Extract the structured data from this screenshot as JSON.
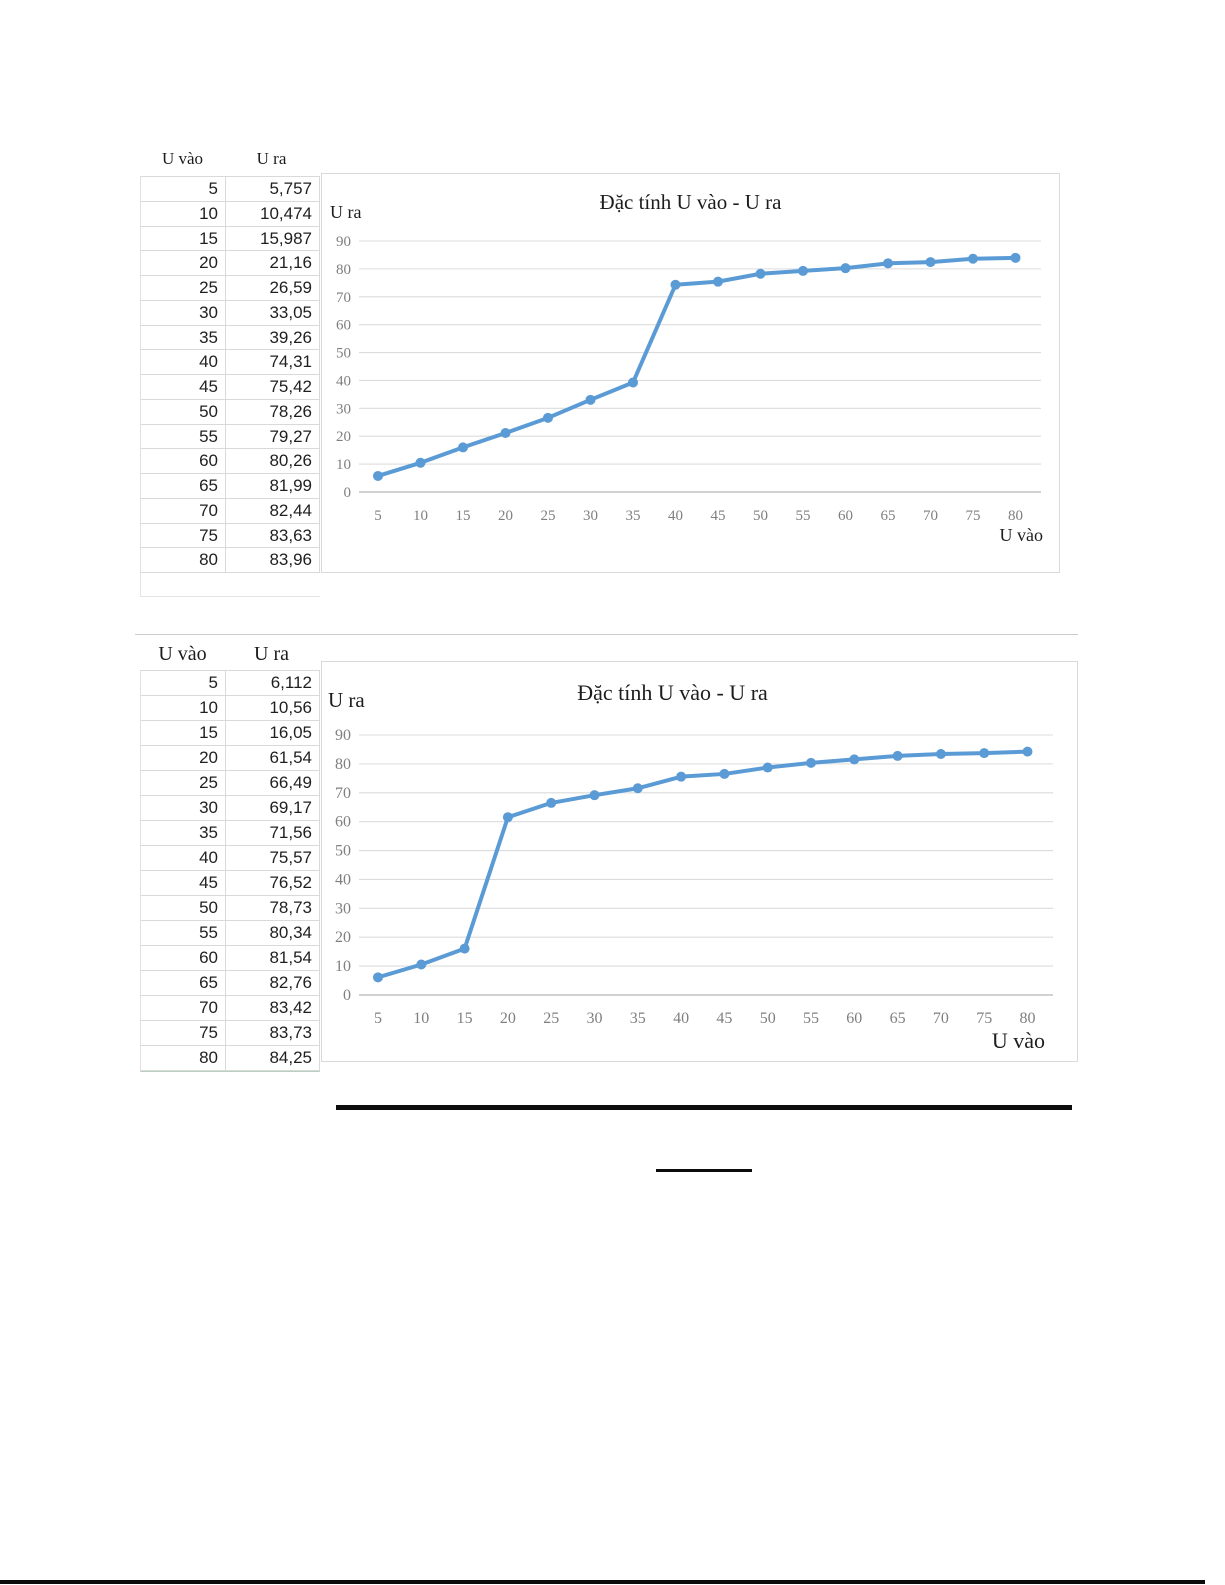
{
  "tables": [
    {
      "headers": {
        "col1": "U vào",
        "col2": "U ra"
      },
      "rows": [
        {
          "in": "5",
          "out": "5,757"
        },
        {
          "in": "10",
          "out": "10,474"
        },
        {
          "in": "15",
          "out": "15,987"
        },
        {
          "in": "20",
          "out": "21,16"
        },
        {
          "in": "25",
          "out": "26,59"
        },
        {
          "in": "30",
          "out": "33,05"
        },
        {
          "in": "35",
          "out": "39,26"
        },
        {
          "in": "40",
          "out": "74,31"
        },
        {
          "in": "45",
          "out": "75,42"
        },
        {
          "in": "50",
          "out": "78,26"
        },
        {
          "in": "55",
          "out": "79,27"
        },
        {
          "in": "60",
          "out": "80,26"
        },
        {
          "in": "65",
          "out": "81,99"
        },
        {
          "in": "70",
          "out": "82,44"
        },
        {
          "in": "75",
          "out": "83,63"
        },
        {
          "in": "80",
          "out": "83,96"
        }
      ]
    },
    {
      "headers": {
        "col1": "U vào",
        "col2": "U ra"
      },
      "rows": [
        {
          "in": "5",
          "out": "6,112"
        },
        {
          "in": "10",
          "out": "10,56"
        },
        {
          "in": "15",
          "out": "16,05"
        },
        {
          "in": "20",
          "out": "61,54"
        },
        {
          "in": "25",
          "out": "66,49"
        },
        {
          "in": "30",
          "out": "69,17"
        },
        {
          "in": "35",
          "out": "71,56"
        },
        {
          "in": "40",
          "out": "75,57"
        },
        {
          "in": "45",
          "out": "76,52"
        },
        {
          "in": "50",
          "out": "78,73"
        },
        {
          "in": "55",
          "out": "80,34"
        },
        {
          "in": "60",
          "out": "81,54"
        },
        {
          "in": "65",
          "out": "82,76"
        },
        {
          "in": "70",
          "out": "83,42"
        },
        {
          "in": "75",
          "out": "83,73"
        },
        {
          "in": "80",
          "out": "84,25"
        }
      ]
    }
  ],
  "chart_data": [
    {
      "type": "line",
      "title": "Đặc tính U vào - U ra",
      "xlabel": "U vào",
      "ylabel": "U ra",
      "x": [
        5,
        10,
        15,
        20,
        25,
        30,
        35,
        40,
        45,
        50,
        55,
        60,
        65,
        70,
        75,
        80
      ],
      "series": [
        {
          "name": "U ra",
          "values": [
            5.757,
            10.474,
            15.987,
            21.16,
            26.59,
            33.05,
            39.26,
            74.31,
            75.42,
            78.26,
            79.27,
            80.26,
            81.99,
            82.44,
            83.63,
            83.96
          ]
        }
      ],
      "ylim": [
        0,
        90
      ],
      "ytick_step": 10,
      "grid": true,
      "legend": "none",
      "marker": "circle",
      "line_color": "#5b9bd5"
    },
    {
      "type": "line",
      "title": "Đặc tính U vào - U ra",
      "xlabel": "U vào",
      "ylabel": "U ra",
      "x": [
        5,
        10,
        15,
        20,
        25,
        30,
        35,
        40,
        45,
        50,
        55,
        60,
        65,
        70,
        75,
        80
      ],
      "series": [
        {
          "name": "U ra",
          "values": [
            6.112,
            10.56,
            16.05,
            61.54,
            66.49,
            69.17,
            71.56,
            75.57,
            76.52,
            78.73,
            80.34,
            81.54,
            82.76,
            83.42,
            83.73,
            84.25
          ]
        }
      ],
      "ylim": [
        0,
        90
      ],
      "ytick_step": 10,
      "grid": true,
      "legend": "none",
      "marker": "circle",
      "line_color": "#5b9bd5"
    }
  ]
}
